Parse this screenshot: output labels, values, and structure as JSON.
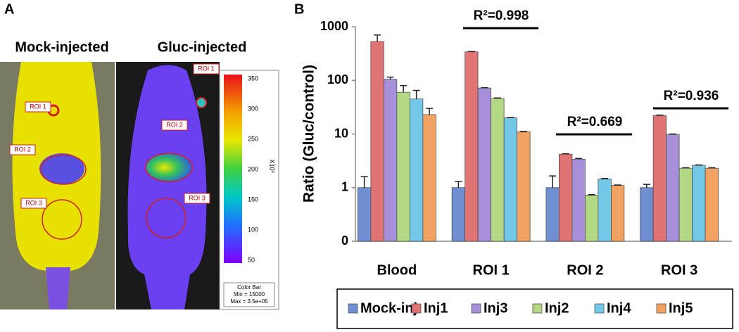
{
  "panel_labels": [
    "A",
    "B"
  ],
  "image_panel": {
    "titles": [
      "Mock-injected",
      "Gluc-injected"
    ],
    "mock_roi_labels": [
      "ROI 1",
      "ROI 2",
      "ROI 3"
    ],
    "gluc_roi_labels": [
      "ROI 1",
      "ROI 2",
      "ROI 3"
    ],
    "color_bar_ticks": [
      "350",
      "300",
      "250",
      "200",
      "150",
      "100",
      "50"
    ],
    "color_bar_unit": "X10³",
    "color_bar_caption": [
      "Color Bar",
      "Min = 15000",
      "Max = 3.5e+05"
    ]
  },
  "chart_data": {
    "type": "bar",
    "log_scale": true,
    "y_label": "Ratio (Gluc/control)",
    "categories": [
      "Blood",
      "ROI 1",
      "ROI 2",
      "ROI 3"
    ],
    "series": [
      {
        "name": "Mock-inj",
        "color": "#6f8fd2",
        "values": [
          1.0,
          1.0,
          1.0,
          1.0
        ],
        "errors": [
          0.6,
          0.3,
          0.65,
          0.15
        ]
      },
      {
        "name": "Inj1",
        "color": "#e07474",
        "values": [
          530,
          340,
          4.2,
          22
        ],
        "errors": [
          170,
          5,
          0.1,
          0.5
        ]
      },
      {
        "name": "Inj3",
        "color": "#a690da",
        "values": [
          105,
          72,
          3.4,
          9.8
        ],
        "errors": [
          10,
          1,
          0.1,
          0.2
        ]
      },
      {
        "name": "Inj2",
        "color": "#b2d884",
        "values": [
          60,
          46,
          0.72,
          2.3
        ],
        "errors": [
          20,
          1,
          0.02,
          0.05
        ]
      },
      {
        "name": "Inj4",
        "color": "#72c8e6",
        "values": [
          45,
          20,
          1.45,
          2.6
        ],
        "errors": [
          20,
          0.3,
          0.03,
          0.05
        ]
      },
      {
        "name": "Inj5",
        "color": "#f4a262",
        "values": [
          23,
          11,
          1.1,
          2.3
        ],
        "errors": [
          7,
          0.2,
          0.02,
          0.05
        ]
      }
    ],
    "annotations": [
      "R²=0.998",
      "R²=0.669",
      "R²=0.936"
    ],
    "ylim": [
      0.1,
      1000
    ],
    "yticks": [
      {
        "value": 0.1,
        "label": "0"
      },
      1,
      10,
      100,
      1000
    ],
    "legend": "bottom"
  }
}
